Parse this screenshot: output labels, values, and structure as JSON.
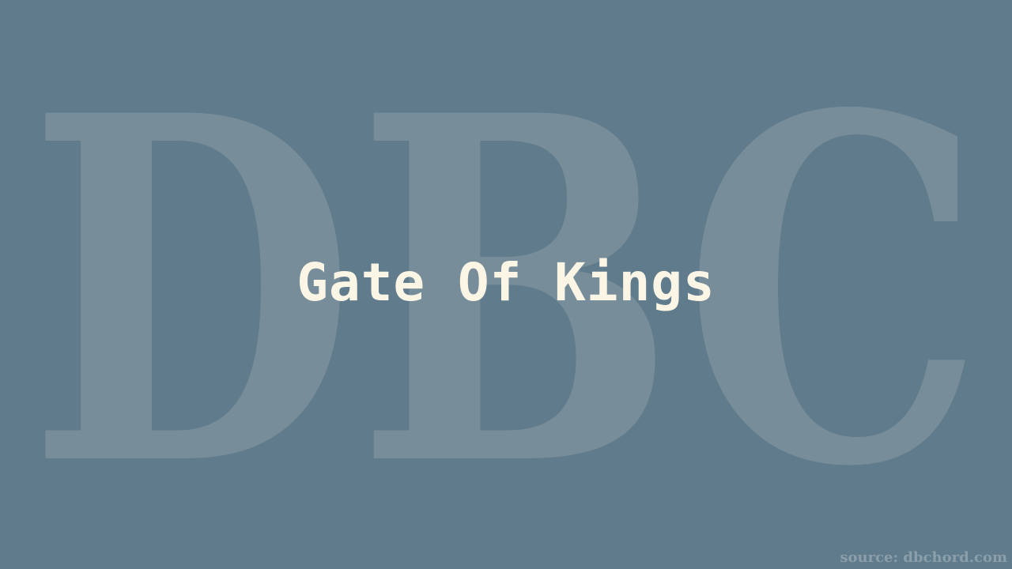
{
  "watermark": {
    "text": "DBC"
  },
  "title": "Gate Of Kings",
  "source": "source: dbchord.com",
  "colors": {
    "background": "#5f7b8c",
    "watermark": "#778d99",
    "title": "#fbf5e6",
    "source": "#8b9fab"
  }
}
